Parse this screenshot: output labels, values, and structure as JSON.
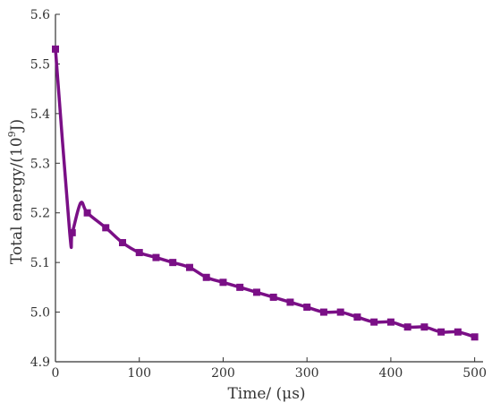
{
  "chart_data": {
    "type": "line",
    "title": "",
    "xlabel": "Time/ (μs)",
    "ylabel_main": "Total energy/(10",
    "ylabel_sup": "9",
    "ylabel_tail": "J)",
    "xlim": [
      0,
      510
    ],
    "ylim": [
      4.9,
      5.6
    ],
    "xticks": [
      0,
      100,
      200,
      300,
      400,
      500
    ],
    "yticks": [
      4.9,
      5.0,
      5.1,
      5.2,
      5.3,
      5.4,
      5.5,
      5.6
    ],
    "xtick_labels": [
      "0",
      "100",
      "200",
      "300",
      "400",
      "500"
    ],
    "ytick_labels": [
      "4.9",
      "5.0",
      "5.1",
      "5.2",
      "5.3",
      "5.4",
      "5.5",
      "5.6"
    ],
    "grid": false,
    "legend": "none",
    "color": "#7a0f86",
    "series": [
      {
        "x": [
          0,
          17,
          20,
          30,
          38,
          60,
          80,
          100,
          120,
          140,
          160,
          180,
          200,
          220,
          240,
          260,
          280,
          300,
          320,
          340,
          360,
          380,
          400,
          420,
          440,
          460,
          480,
          500
        ],
        "y": [
          5.53,
          5.16,
          5.16,
          5.22,
          5.2,
          5.17,
          5.14,
          5.12,
          5.11,
          5.1,
          5.09,
          5.07,
          5.06,
          5.05,
          5.04,
          5.03,
          5.02,
          5.01,
          5.0,
          5.0,
          4.99,
          4.98,
          4.98,
          4.97,
          4.97,
          4.96,
          4.96,
          4.95
        ],
        "markers": [
          true,
          false,
          true,
          false,
          true,
          true,
          true,
          true,
          true,
          true,
          true,
          true,
          true,
          true,
          true,
          true,
          true,
          true,
          true,
          true,
          true,
          true,
          true,
          true,
          true,
          true,
          true,
          true
        ]
      }
    ]
  }
}
